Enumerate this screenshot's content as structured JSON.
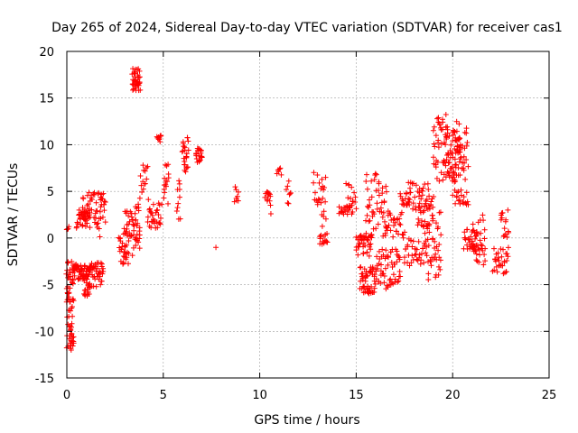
{
  "chart_data": {
    "type": "scatter",
    "title": "Day 265 of 2024, Sidereal Day-to-day VTEC variation (SDTVAR) for receiver cas1",
    "xlabel": "GPS time / hours",
    "ylabel": "SDTVAR / TECUs",
    "xlim": [
      0,
      25
    ],
    "ylim": [
      -15,
      20
    ],
    "xticks": [
      0,
      5,
      10,
      15,
      20,
      25
    ],
    "yticks": [
      -15,
      -10,
      -5,
      0,
      5,
      10,
      15,
      20
    ],
    "xtick_labels": [
      "0",
      "5",
      "10",
      "15",
      "20",
      "25"
    ],
    "ytick_labels": [
      "-15",
      "-10",
      "-5",
      "0",
      "5",
      "10",
      "15",
      "20"
    ],
    "grid": true,
    "marker": "+",
    "marker_color": "#ff0000",
    "series": [
      {
        "name": "SDTVAR",
        "clusters": [
          {
            "x0": 0.0,
            "x1": 0.35,
            "y0": -12.0,
            "y1": -2.5,
            "n": 70
          },
          {
            "x0": 0.0,
            "x1": 0.1,
            "y0": 0.8,
            "y1": 1.4,
            "n": 4
          },
          {
            "x0": 0.3,
            "x1": 1.2,
            "y0": -4.5,
            "y1": -2.8,
            "n": 60
          },
          {
            "x0": 0.5,
            "x1": 1.2,
            "y0": 1.0,
            "y1": 3.0,
            "n": 30
          },
          {
            "x0": 0.8,
            "x1": 1.3,
            "y0": 2.0,
            "y1": 5.0,
            "n": 25
          },
          {
            "x0": 0.9,
            "x1": 1.2,
            "y0": -6.5,
            "y1": -4.0,
            "n": 20
          },
          {
            "x0": 1.2,
            "x1": 1.9,
            "y0": -5.5,
            "y1": -2.5,
            "n": 40
          },
          {
            "x0": 1.4,
            "x1": 2.0,
            "y0": 0.0,
            "y1": 5.0,
            "n": 35
          },
          {
            "x0": 2.7,
            "x1": 3.2,
            "y0": -3.0,
            "y1": 0.5,
            "n": 30
          },
          {
            "x0": 3.0,
            "x1": 3.4,
            "y0": 0.0,
            "y1": 3.0,
            "n": 20
          },
          {
            "x0": 3.4,
            "x1": 3.8,
            "y0": 15.8,
            "y1": 18.2,
            "n": 40
          },
          {
            "x0": 3.4,
            "x1": 3.8,
            "y0": -2.0,
            "y1": 4.0,
            "n": 30
          },
          {
            "x0": 3.8,
            "x1": 4.2,
            "y0": 4.0,
            "y1": 8.0,
            "n": 15
          },
          {
            "x0": 4.2,
            "x1": 4.9,
            "y0": 1.0,
            "y1": 4.5,
            "n": 30
          },
          {
            "x0": 4.7,
            "x1": 4.9,
            "y0": 10.3,
            "y1": 11.0,
            "n": 10
          },
          {
            "x0": 5.0,
            "x1": 5.3,
            "y0": 3.5,
            "y1": 8.0,
            "n": 15
          },
          {
            "x0": 5.7,
            "x1": 5.9,
            "y0": 2.0,
            "y1": 6.5,
            "n": 10
          },
          {
            "x0": 6.0,
            "x1": 6.3,
            "y0": 7.0,
            "y1": 10.8,
            "n": 25
          },
          {
            "x0": 6.7,
            "x1": 7.0,
            "y0": 8.0,
            "y1": 9.8,
            "n": 20
          },
          {
            "x0": 7.7,
            "x1": 7.7,
            "y0": -1.0,
            "y1": -1.0,
            "n": 1
          },
          {
            "x0": 8.7,
            "x1": 8.9,
            "y0": 3.5,
            "y1": 5.5,
            "n": 8
          },
          {
            "x0": 10.3,
            "x1": 10.6,
            "y0": 2.5,
            "y1": 5.0,
            "n": 15
          },
          {
            "x0": 10.9,
            "x1": 11.1,
            "y0": 6.5,
            "y1": 7.5,
            "n": 6
          },
          {
            "x0": 11.4,
            "x1": 11.6,
            "y0": 3.5,
            "y1": 6.5,
            "n": 8
          },
          {
            "x0": 12.8,
            "x1": 13.4,
            "y0": 2.0,
            "y1": 8.0,
            "n": 20
          },
          {
            "x0": 13.1,
            "x1": 13.5,
            "y0": -1.5,
            "y1": 3.0,
            "n": 20
          },
          {
            "x0": 14.1,
            "x1": 14.8,
            "y0": 2.5,
            "y1": 3.5,
            "n": 20
          },
          {
            "x0": 14.5,
            "x1": 15.0,
            "y0": 3.0,
            "y1": 6.0,
            "n": 15
          },
          {
            "x0": 15.0,
            "x1": 15.8,
            "y0": -2.0,
            "y1": 0.5,
            "n": 40
          },
          {
            "x0": 15.2,
            "x1": 16.0,
            "y0": -6.0,
            "y1": -3.0,
            "n": 50
          },
          {
            "x0": 15.5,
            "x1": 16.6,
            "y0": 0.0,
            "y1": 7.0,
            "n": 50
          },
          {
            "x0": 16.0,
            "x1": 17.3,
            "y0": -5.5,
            "y1": -1.0,
            "n": 60
          },
          {
            "x0": 16.5,
            "x1": 17.5,
            "y0": 0.0,
            "y1": 3.0,
            "n": 30
          },
          {
            "x0": 17.3,
            "x1": 17.8,
            "y0": 3.5,
            "y1": 5.0,
            "n": 15
          },
          {
            "x0": 17.5,
            "x1": 18.7,
            "y0": -3.0,
            "y1": 0.0,
            "n": 40
          },
          {
            "x0": 17.6,
            "x1": 19.0,
            "y0": 3.0,
            "y1": 6.0,
            "n": 40
          },
          {
            "x0": 18.2,
            "x1": 18.8,
            "y0": 0.5,
            "y1": 4.0,
            "n": 25
          },
          {
            "x0": 18.7,
            "x1": 19.4,
            "y0": -4.5,
            "y1": 3.0,
            "n": 40
          },
          {
            "x0": 19.0,
            "x1": 19.7,
            "y0": 6.0,
            "y1": 13.5,
            "n": 40
          },
          {
            "x0": 19.6,
            "x1": 20.4,
            "y0": 6.5,
            "y1": 12.5,
            "n": 60
          },
          {
            "x0": 20.0,
            "x1": 20.8,
            "y0": 3.5,
            "y1": 12.0,
            "n": 60
          },
          {
            "x0": 20.6,
            "x1": 21.3,
            "y0": -1.5,
            "y1": 1.0,
            "n": 30
          },
          {
            "x0": 21.0,
            "x1": 21.7,
            "y0": -3.0,
            "y1": 2.5,
            "n": 35
          },
          {
            "x0": 22.1,
            "x1": 22.9,
            "y0": -4.0,
            "y1": -1.0,
            "n": 30
          },
          {
            "x0": 22.5,
            "x1": 22.9,
            "y0": 0.0,
            "y1": 3.5,
            "n": 15
          }
        ]
      }
    ]
  }
}
